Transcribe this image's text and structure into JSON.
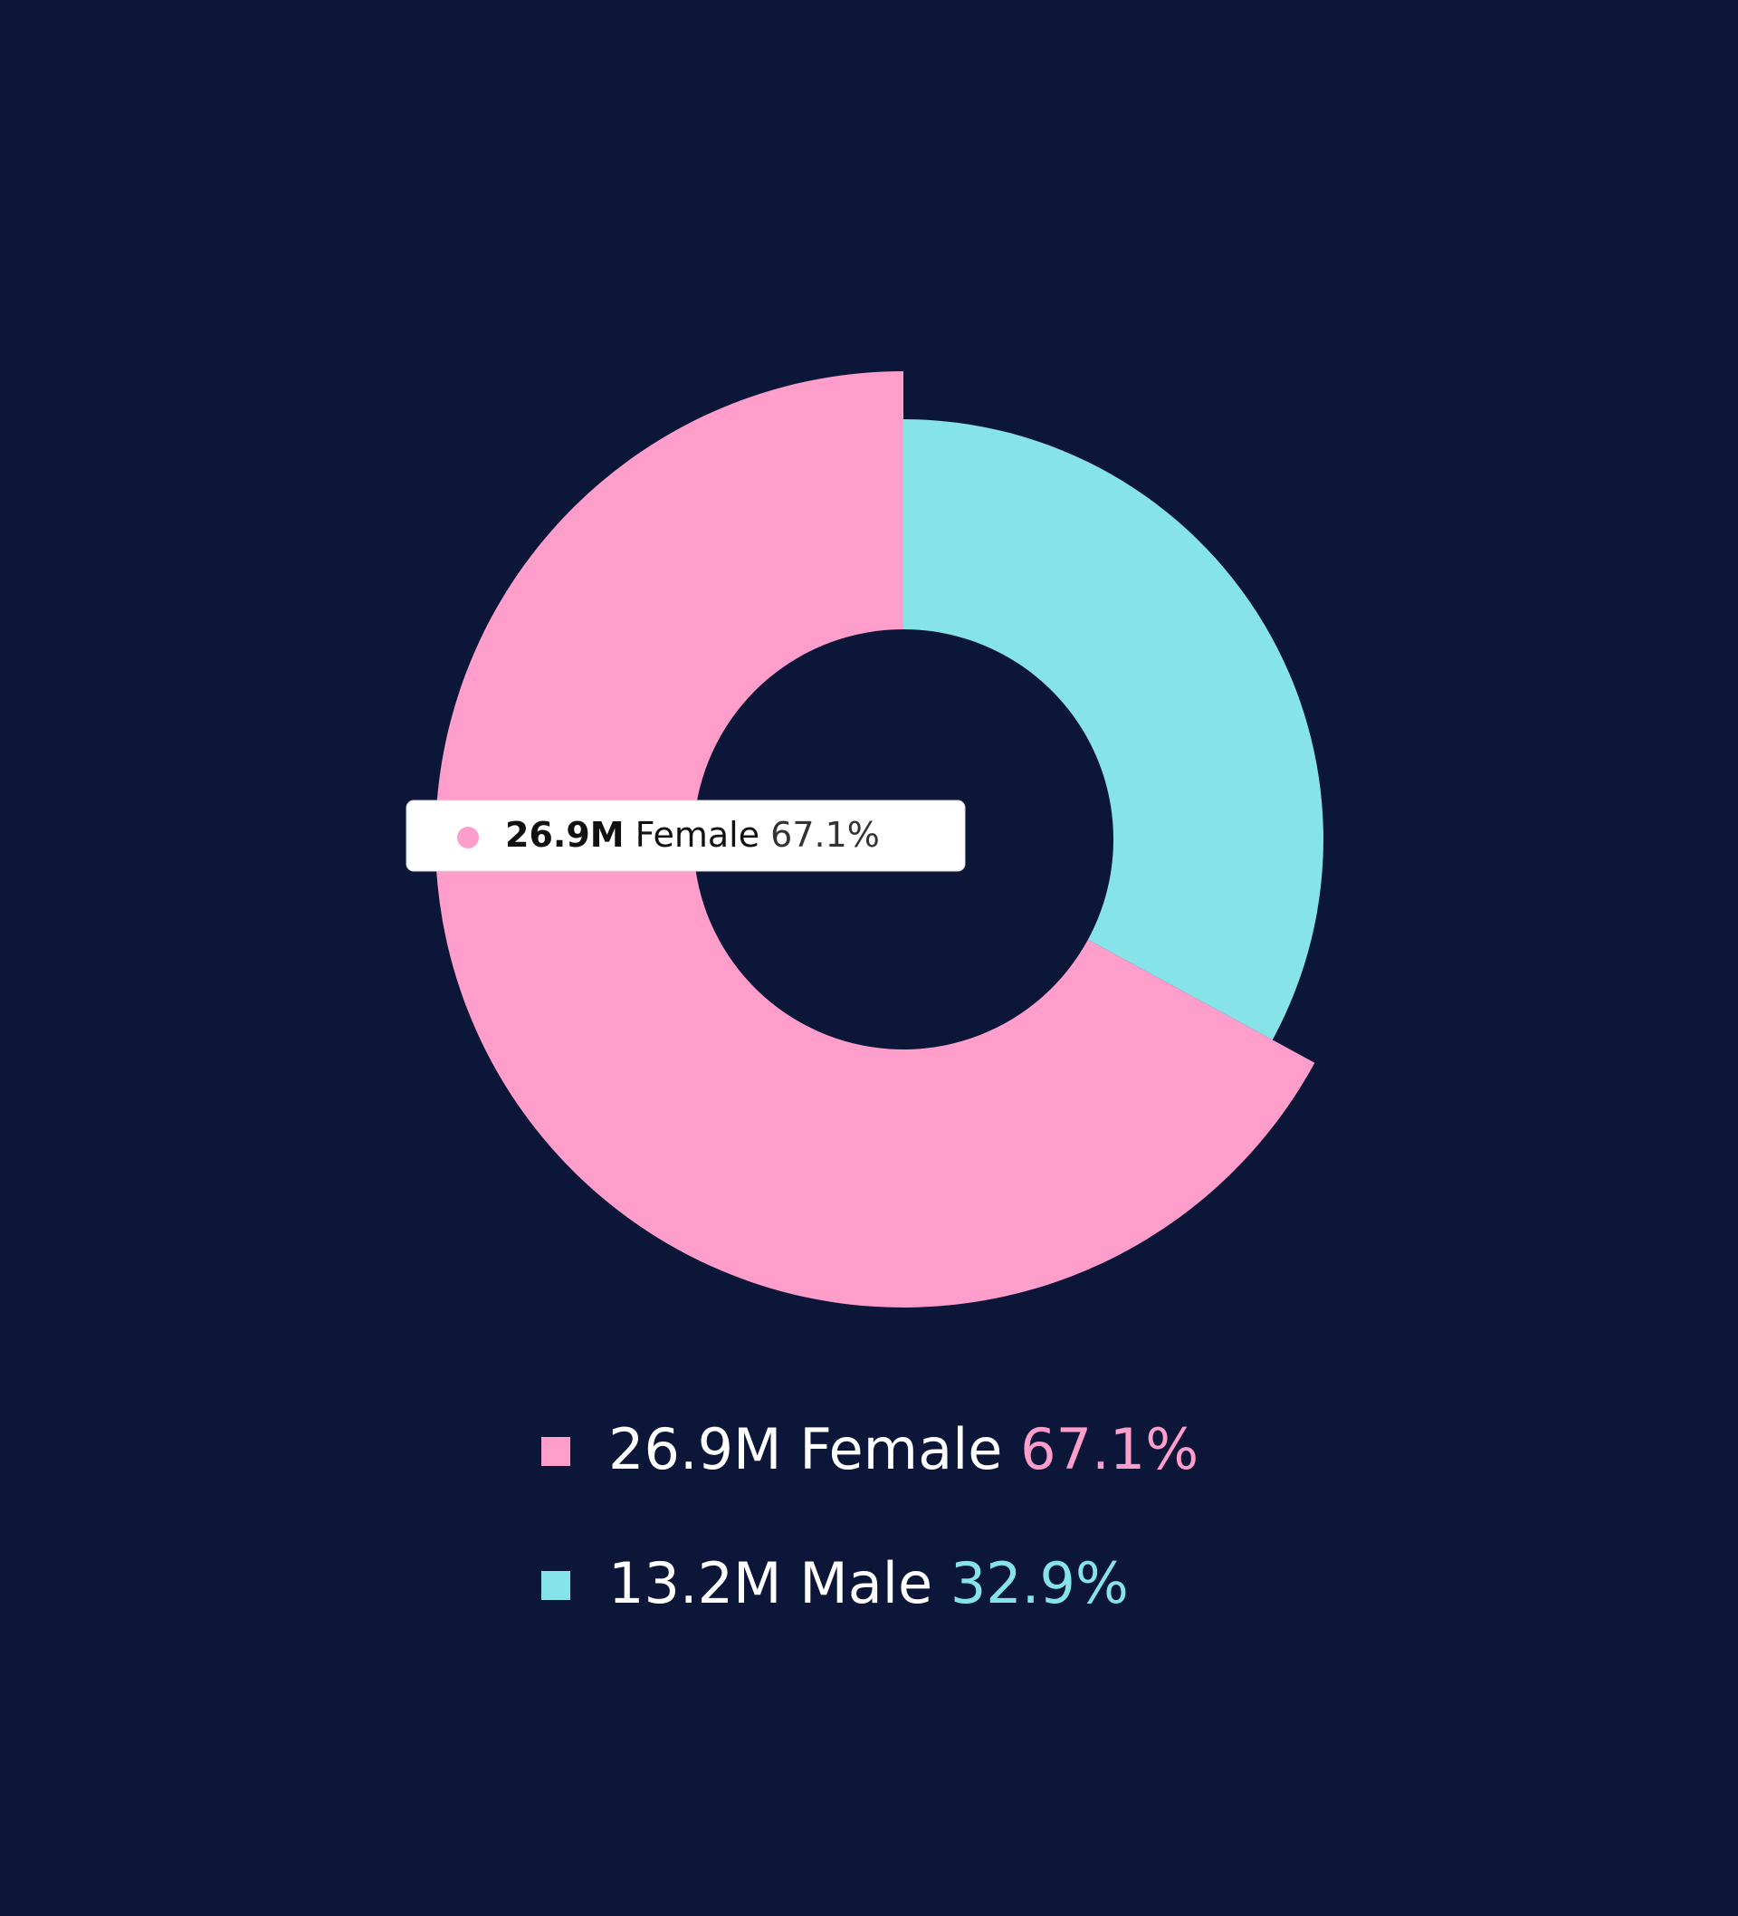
{
  "chart_data": {
    "type": "donut",
    "categories": [
      "Female",
      "Male"
    ],
    "values": [
      26900000,
      13200000
    ],
    "value_labels": [
      "26.9M",
      "13.2M"
    ],
    "percents": [
      67.1,
      32.9
    ],
    "percent_labels": [
      "67.1%",
      "32.9%"
    ],
    "colors": [
      "#ff9dcb",
      "#86e3e8"
    ],
    "highlighted": 0
  }
}
